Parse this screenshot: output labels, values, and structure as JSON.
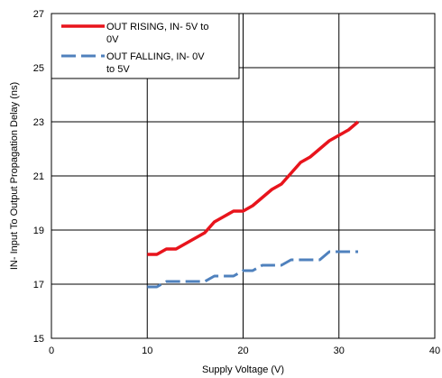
{
  "chart_data": {
    "type": "line",
    "title": "",
    "xlabel": "Supply Voltage (V)",
    "ylabel": "IN- Input To Output Propagation Delay (ns)",
    "xlim": [
      0,
      40
    ],
    "ylim": [
      15,
      27
    ],
    "xticks": [
      0,
      10,
      20,
      30,
      40
    ],
    "yticks": [
      15,
      17,
      19,
      21,
      23,
      25,
      27
    ],
    "x_tick_labels": [
      "0",
      "10",
      "20",
      "30",
      "40"
    ],
    "y_tick_labels": [
      "15",
      "17",
      "19",
      "21",
      "23",
      "25",
      "27"
    ],
    "grid": true,
    "legend_position": "top-left",
    "series": [
      {
        "name": "OUT RISING, IN- 5V to 0V",
        "legend_lines": [
          "OUT RISING, IN- 5V to",
          "0V"
        ],
        "color": "#e8141c",
        "style": "solid",
        "x": [
          10,
          11,
          12,
          13,
          14,
          15,
          16,
          17,
          18,
          19,
          20,
          21,
          22,
          23,
          24,
          25,
          26,
          27,
          28,
          29,
          30,
          31,
          32
        ],
        "y": [
          18.1,
          18.1,
          18.3,
          18.3,
          18.5,
          18.7,
          18.9,
          19.3,
          19.5,
          19.7,
          19.7,
          19.9,
          20.2,
          20.5,
          20.7,
          21.1,
          21.5,
          21.7,
          22.0,
          22.3,
          22.5,
          22.7,
          23.0
        ]
      },
      {
        "name": "OUT FALLING, IN- 0V to 5V",
        "legend_lines": [
          "OUT FALLING, IN- 0V",
          "to 5V"
        ],
        "color": "#4f81bd",
        "style": "dashed",
        "x": [
          10,
          11,
          12,
          13,
          14,
          15,
          16,
          17,
          18,
          19,
          20,
          21,
          22,
          23,
          24,
          25,
          26,
          27,
          28,
          29,
          30,
          31,
          32
        ],
        "y": [
          16.9,
          16.9,
          17.1,
          17.1,
          17.1,
          17.1,
          17.1,
          17.3,
          17.3,
          17.3,
          17.5,
          17.5,
          17.7,
          17.7,
          17.7,
          17.9,
          17.9,
          17.9,
          17.9,
          18.2,
          18.2,
          18.2,
          18.2
        ]
      }
    ]
  }
}
